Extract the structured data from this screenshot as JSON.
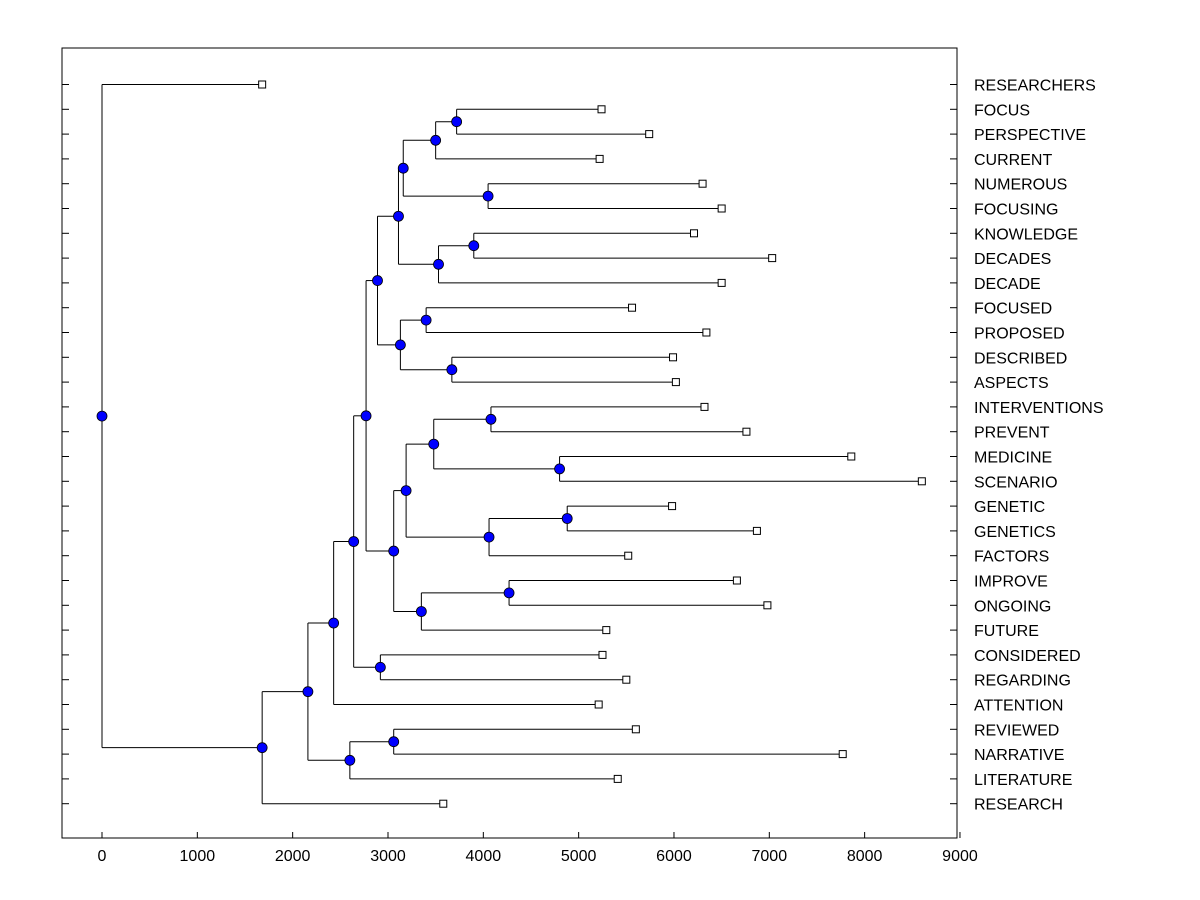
{
  "chart_data": {
    "type": "dendrogram",
    "title": "",
    "xlabel": "",
    "ylabel": "",
    "xlim": [
      -430,
      9000
    ],
    "xticks": [
      0,
      1000,
      2000,
      3000,
      4000,
      5000,
      6000,
      7000,
      8000,
      9000
    ],
    "tick_labels": [
      "0",
      "1000",
      "2000",
      "3000",
      "4000",
      "5000",
      "6000",
      "7000",
      "8000",
      "9000"
    ],
    "grid": false,
    "colors": {
      "node": "#0000ff",
      "line": "#000000",
      "leaf_fill": "#ffffff"
    },
    "leaves": [
      {
        "label": "RESEARCHERS",
        "x": 1680
      },
      {
        "label": "FOCUS",
        "x": 5240
      },
      {
        "label": "PERSPECTIVE",
        "x": 5740
      },
      {
        "label": "CURRENT",
        "x": 5220
      },
      {
        "label": "NUMEROUS",
        "x": 6300
      },
      {
        "label": "FOCUSING",
        "x": 6500
      },
      {
        "label": "KNOWLEDGE",
        "x": 6210
      },
      {
        "label": "DECADES",
        "x": 7030
      },
      {
        "label": "DECADE",
        "x": 6500
      },
      {
        "label": "FOCUSED",
        "x": 5560
      },
      {
        "label": "PROPOSED",
        "x": 6340
      },
      {
        "label": "DESCRIBED",
        "x": 5990
      },
      {
        "label": "ASPECTS",
        "x": 6020
      },
      {
        "label": "INTERVENTIONS",
        "x": 6320
      },
      {
        "label": "PREVENT",
        "x": 6760
      },
      {
        "label": "MEDICINE",
        "x": 7860
      },
      {
        "label": "SCENARIO",
        "x": 8600
      },
      {
        "label": "GENETIC",
        "x": 5980
      },
      {
        "label": "GENETICS",
        "x": 6870
      },
      {
        "label": "FACTORS",
        "x": 5520
      },
      {
        "label": "IMPROVE",
        "x": 6660
      },
      {
        "label": "ONGOING",
        "x": 6980
      },
      {
        "label": "FUTURE",
        "x": 5290
      },
      {
        "label": "CONSIDERED",
        "x": 5250
      },
      {
        "label": "REGARDING",
        "x": 5500
      },
      {
        "label": "ATTENTION",
        "x": 5210
      },
      {
        "label": "REVIEWED",
        "x": 5600
      },
      {
        "label": "NARRATIVE",
        "x": 7770
      },
      {
        "label": "LITERATURE",
        "x": 5410
      },
      {
        "label": "RESEARCH",
        "x": 3580
      }
    ],
    "merges": [
      {
        "id": "A",
        "height": 3720,
        "children": [
          "L1",
          "L2"
        ]
      },
      {
        "id": "B",
        "height": 3500,
        "children": [
          "A",
          "L3"
        ]
      },
      {
        "id": "C",
        "height": 4050,
        "children": [
          "L4",
          "L5"
        ]
      },
      {
        "id": "D",
        "height": 3160,
        "children": [
          "B",
          "C"
        ]
      },
      {
        "id": "E",
        "height": 3900,
        "children": [
          "L6",
          "L7"
        ]
      },
      {
        "id": "F",
        "height": 3530,
        "children": [
          "E",
          "L8"
        ]
      },
      {
        "id": "G",
        "height": 3110,
        "children": [
          "D",
          "F"
        ]
      },
      {
        "id": "H",
        "height": 3400,
        "children": [
          "L9",
          "L10"
        ]
      },
      {
        "id": "I",
        "height": 3670,
        "children": [
          "L11",
          "L12"
        ]
      },
      {
        "id": "J",
        "height": 3130,
        "children": [
          "H",
          "I"
        ]
      },
      {
        "id": "K",
        "height": 2890,
        "children": [
          "G",
          "J"
        ]
      },
      {
        "id": "M",
        "height": 4080,
        "children": [
          "L13",
          "L14"
        ]
      },
      {
        "id": "N",
        "height": 4800,
        "children": [
          "L15",
          "L16"
        ]
      },
      {
        "id": "O",
        "height": 3480,
        "children": [
          "M",
          "N"
        ]
      },
      {
        "id": "P",
        "height": 4880,
        "children": [
          "L17",
          "L18"
        ]
      },
      {
        "id": "Q",
        "height": 4060,
        "children": [
          "P",
          "L19"
        ]
      },
      {
        "id": "R",
        "height": 3190,
        "children": [
          "O",
          "Q"
        ]
      },
      {
        "id": "S",
        "height": 4270,
        "children": [
          "L20",
          "L21"
        ]
      },
      {
        "id": "T",
        "height": 3350,
        "children": [
          "S",
          "L22"
        ]
      },
      {
        "id": "U",
        "height": 3060,
        "children": [
          "R",
          "T"
        ]
      },
      {
        "id": "V",
        "height": 2770,
        "children": [
          "K",
          "U"
        ]
      },
      {
        "id": "W",
        "height": 2920,
        "children": [
          "L23",
          "L24"
        ]
      },
      {
        "id": "X",
        "height": 2640,
        "children": [
          "V",
          "W"
        ]
      },
      {
        "id": "Y",
        "height": 2430,
        "children": [
          "X",
          "L25"
        ]
      },
      {
        "id": "Z",
        "height": 3060,
        "children": [
          "L26",
          "L27"
        ]
      },
      {
        "id": "AA",
        "height": 2600,
        "children": [
          "Z",
          "L28"
        ]
      },
      {
        "id": "AB",
        "height": 2160,
        "children": [
          "Y",
          "AA"
        ]
      },
      {
        "id": "AC",
        "height": 1680,
        "children": [
          "AB",
          "L29"
        ]
      },
      {
        "id": "ROOT",
        "height": 0,
        "children": [
          "L0",
          "AC"
        ]
      }
    ]
  }
}
